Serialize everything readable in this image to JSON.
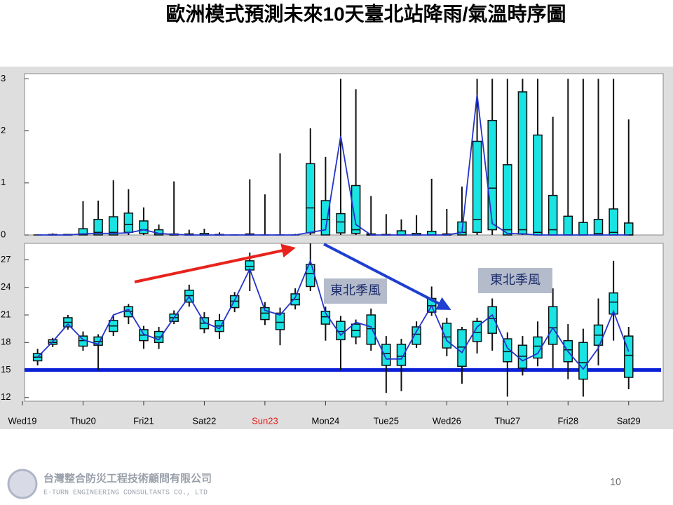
{
  "slide": {
    "title": "歐洲模式預測未來10天臺北站降雨/氣溫時序圖",
    "page_number": "10",
    "company_name": "台灣整合防災工程技術顧問有限公司",
    "company_name_en": "E-TURN ENGINEERING CONSULTANTS CO., LTD"
  },
  "chart_data": [
    {
      "type": "boxplot",
      "x": [
        6,
        12,
        18,
        24,
        30,
        36,
        42,
        48,
        54,
        60,
        66,
        72,
        78,
        84,
        90,
        96,
        102,
        108,
        114,
        120,
        126,
        132,
        138,
        144,
        150,
        156,
        162,
        168,
        174,
        180,
        186,
        192,
        198,
        204,
        210,
        216,
        222,
        228,
        234,
        240
      ],
      "min": [
        0,
        0,
        0,
        0,
        0,
        0,
        0,
        0,
        0,
        0,
        0,
        0,
        0,
        0,
        0,
        0,
        0,
        0,
        0,
        0,
        0,
        0,
        0,
        0,
        0,
        0,
        0,
        0,
        0,
        0,
        0,
        0,
        0,
        0,
        0,
        0,
        0,
        0,
        0,
        0
      ],
      "q1": [
        0,
        0,
        0,
        0,
        0,
        0,
        0.05,
        0.03,
        0,
        0,
        0,
        0,
        0,
        0,
        0,
        0,
        0,
        0,
        0.04,
        0,
        0.04,
        0.03,
        0,
        0,
        0,
        0,
        0,
        0,
        0,
        0.05,
        0.1,
        0,
        0.02,
        0,
        0,
        0,
        0,
        0,
        0,
        0
      ],
      "median": [
        0,
        0,
        0,
        0.02,
        0.05,
        0.05,
        0.2,
        0.1,
        0.03,
        0,
        0,
        0,
        0,
        0,
        0,
        0,
        0,
        0,
        0.52,
        0.3,
        0.25,
        0.1,
        0,
        0,
        0,
        0,
        0,
        0,
        0.05,
        0.3,
        0.9,
        0.1,
        0.1,
        0.05,
        0.1,
        0,
        0,
        0.03,
        0.05,
        0
      ],
      "q3": [
        0,
        0.01,
        0.01,
        0.12,
        0.3,
        0.35,
        0.42,
        0.27,
        0.1,
        0.02,
        0.02,
        0.03,
        0.01,
        0,
        0.02,
        0,
        0,
        0,
        1.37,
        0.66,
        0.41,
        0.95,
        0.02,
        0.01,
        0.08,
        0.03,
        0.07,
        0.02,
        0.25,
        1.8,
        2.2,
        1.35,
        2.75,
        1.92,
        0.76,
        0.36,
        0.24,
        0.3,
        0.5,
        0.23
      ],
      "max": [
        0.01,
        0.03,
        0.02,
        0.65,
        0.66,
        1.05,
        0.88,
        0.53,
        0.2,
        1.03,
        0.1,
        0.12,
        0.05,
        0.01,
        1.07,
        0.78,
        1.57,
        0.02,
        2.05,
        1.5,
        3.0,
        2.8,
        0.75,
        0.4,
        0.3,
        0.38,
        1.08,
        0.5,
        0.93,
        3.0,
        3.0,
        3.0,
        3.0,
        3.0,
        2.27,
        3.0,
        3.0,
        3.0,
        3.0,
        2.22
      ],
      "mean": [
        0,
        0,
        0,
        0.02,
        0.03,
        0.03,
        0.04,
        0.1,
        0.03,
        0.01,
        0,
        0,
        0,
        0,
        0,
        0,
        0,
        0,
        0.05,
        0.1,
        1.9,
        0.2,
        0,
        0,
        0,
        0,
        0,
        0,
        0.05,
        2.7,
        0.22,
        0.03,
        0.02,
        0,
        0,
        0,
        0,
        0,
        0,
        0
      ],
      "box_color": "#19e3e3",
      "line_color": "#2233cc",
      "xlim": [
        0,
        252
      ],
      "ylim": [
        0,
        3.1
      ],
      "yticks": [
        0,
        1,
        2,
        3
      ]
    },
    {
      "type": "boxplot",
      "x": [
        6,
        12,
        18,
        24,
        30,
        36,
        42,
        48,
        54,
        60,
        66,
        72,
        78,
        84,
        90,
        96,
        102,
        108,
        114,
        120,
        126,
        132,
        138,
        144,
        150,
        156,
        162,
        168,
        174,
        180,
        186,
        192,
        198,
        204,
        210,
        216,
        222,
        228,
        234,
        240
      ],
      "min": [
        15.5,
        17.5,
        19.4,
        17.1,
        15.0,
        18.7,
        20.0,
        17.3,
        17.3,
        20.0,
        21.9,
        19.0,
        18.4,
        21.3,
        23.6,
        19.9,
        17.7,
        21.6,
        23.6,
        18.2,
        15.0,
        17.8,
        17.1,
        12.5,
        12.7,
        17.4,
        20.9,
        16.5,
        13.5,
        16.8,
        17.1,
        12.1,
        14.4,
        15.4,
        15.2,
        14.0,
        12.1,
        15.5,
        18.2,
        12.9
      ],
      "q1": [
        16.0,
        17.8,
        19.7,
        17.6,
        17.7,
        19.2,
        20.8,
        18.2,
        18.0,
        20.3,
        22.4,
        19.5,
        19.2,
        21.8,
        25.9,
        20.5,
        19.4,
        22.1,
        24.1,
        20.0,
        18.3,
        18.6,
        17.8,
        15.5,
        15.5,
        17.8,
        21.3,
        17.4,
        15.4,
        18.1,
        19.0,
        15.9,
        15.2,
        16.3,
        17.8,
        15.9,
        14.0,
        17.7,
        21.1,
        14.2
      ],
      "median": [
        16.4,
        18.0,
        20.2,
        18.2,
        18.1,
        19.8,
        21.4,
        18.8,
        18.6,
        20.7,
        23.1,
        20.1,
        19.8,
        22.5,
        26.3,
        21.2,
        20.2,
        22.7,
        25.5,
        20.8,
        19.2,
        19.3,
        19.5,
        16.8,
        16.5,
        18.9,
        22.0,
        18.6,
        17.5,
        19.1,
        20.6,
        17.0,
        16.5,
        17.6,
        19.6,
        17.2,
        15.8,
        18.8,
        22.4,
        16.6
      ],
      "q3": [
        16.8,
        18.3,
        20.7,
        18.7,
        18.6,
        20.4,
        21.9,
        19.4,
        19.2,
        21.1,
        23.7,
        20.7,
        20.4,
        23.1,
        26.9,
        21.8,
        21.2,
        23.3,
        26.5,
        21.4,
        20.3,
        20.0,
        21.0,
        17.8,
        17.8,
        19.7,
        22.8,
        20.1,
        19.4,
        20.3,
        21.9,
        18.4,
        17.7,
        18.6,
        21.9,
        18.2,
        18.0,
        19.9,
        23.4,
        18.7
      ],
      "max": [
        17.3,
        18.5,
        21.0,
        19.2,
        18.9,
        20.9,
        22.2,
        19.8,
        19.7,
        21.5,
        24.3,
        21.3,
        21.1,
        23.5,
        27.8,
        22.4,
        21.8,
        23.9,
        28.8,
        21.9,
        20.9,
        20.5,
        21.7,
        18.7,
        18.4,
        20.3,
        24.1,
        20.7,
        19.7,
        20.7,
        22.8,
        19.1,
        18.7,
        20.3,
        23.9,
        20.0,
        19.5,
        22.8,
        26.9,
        19.7
      ],
      "mean": [
        16.4,
        18.1,
        20.0,
        18.3,
        17.8,
        21.0,
        21.6,
        18.9,
        18.3,
        20.7,
        23.0,
        20.2,
        19.5,
        22.6,
        26.0,
        21.5,
        21.0,
        22.9,
        26.9,
        21.2,
        18.8,
        20.2,
        19.7,
        16.2,
        16.2,
        19.2,
        22.0,
        18.2,
        16.9,
        19.7,
        21.0,
        17.4,
        16.0,
        16.8,
        19.6,
        17.0,
        15.1,
        17.4,
        21.4,
        17.0
      ],
      "box_color": "#19e3e3",
      "line_color": "#2233cc",
      "xlim": [
        0,
        252
      ],
      "ylim": [
        11.6,
        28.8
      ],
      "yticks": [
        12,
        15,
        18,
        21,
        24,
        27
      ],
      "xticks": [
        {
          "value": 0,
          "label": "Wed19"
        },
        {
          "value": 24,
          "label": "Thu20"
        },
        {
          "value": 48,
          "label": "Fri21"
        },
        {
          "value": 72,
          "label": "Sat22"
        },
        {
          "value": 96,
          "label": "Sun23",
          "color": "#e0201b"
        },
        {
          "value": 120,
          "label": "Mon24"
        },
        {
          "value": 144,
          "label": "Tue25"
        },
        {
          "value": 168,
          "label": "Wed26"
        },
        {
          "value": 192,
          "label": "Thu27"
        },
        {
          "value": 216,
          "label": "Fri28"
        },
        {
          "value": 240,
          "label": "Sat29"
        }
      ],
      "reference_line": {
        "value": 15,
        "color": "#0a1fd6"
      },
      "annotations": [
        "東北季風",
        "東北季風"
      ]
    }
  ]
}
